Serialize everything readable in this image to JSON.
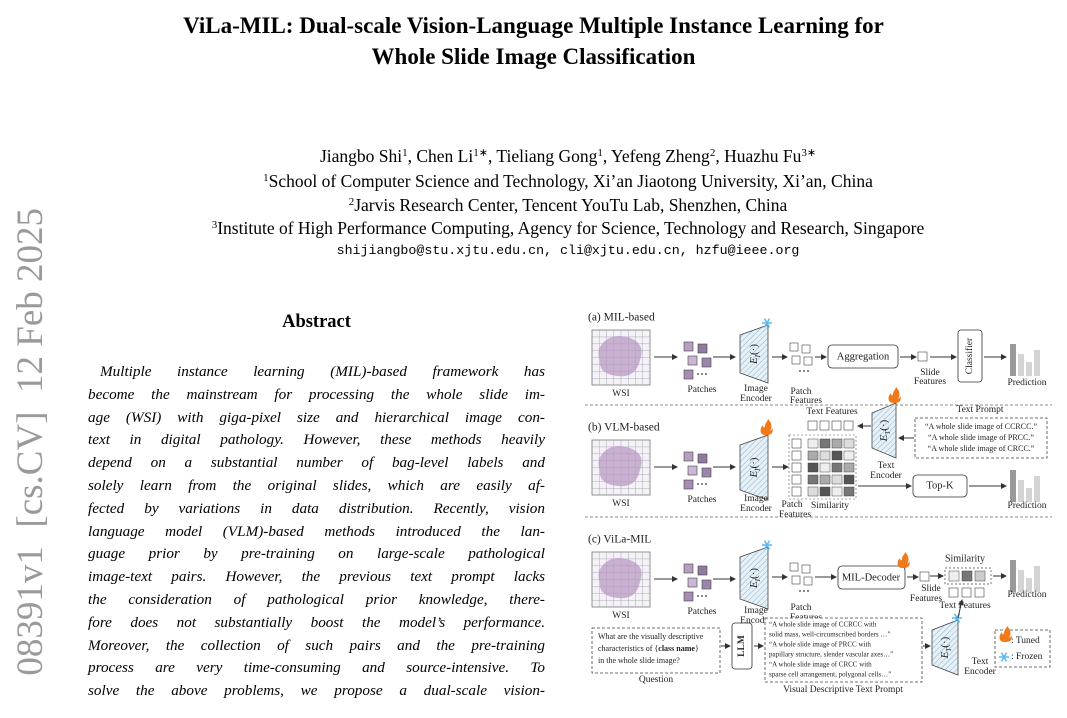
{
  "side_stamp": "08391v1  [cs.CV]  12 Feb 2025",
  "title": [
    "ViLa-MIL: Dual-scale Vision-Language Multiple Instance Learning for",
    "Whole Slide Image Classification"
  ],
  "authors": {
    "separator": ", ",
    "list": [
      {
        "name": "Jiangbo Shi",
        "sup": "1"
      },
      {
        "name": "Chen Li",
        "sup": "1∗"
      },
      {
        "name": "Tieliang Gong",
        "sup": "1"
      },
      {
        "name": "Yefeng Zheng",
        "sup": "2"
      },
      {
        "name": "Huazhu Fu",
        "sup": "3∗"
      }
    ]
  },
  "affiliations": [
    {
      "sup": "1",
      "text": "School of Computer Science and Technology, Xi’an Jiaotong University, Xi’an, China"
    },
    {
      "sup": "2",
      "text": "Jarvis Research Center, Tencent YouTu Lab, Shenzhen, China"
    },
    {
      "sup": "3",
      "text": "Institute of High Performance Computing, Agency for Science, Technology and Research, Singapore"
    }
  ],
  "emails": "shijiangbo@stu.xjtu.edu.cn, cli@xjtu.edu.cn, hzfu@ieee.org",
  "abstract": {
    "heading": "Abstract",
    "lines": [
      "Multiple instance learning (MIL)-based framework has",
      "become the mainstream for processing the whole slide im-",
      "age (WSI) with giga-pixel size and hierarchical image con-",
      "text in digital pathology.  However, these methods heavily",
      "depend on a substantial number of bag-level labels and",
      "solely learn from the original slides, which are easily af-",
      "fected by variations in data distribution.  Recently, vision",
      "language model (VLM)-based methods introduced the lan-",
      "guage prior by pre-training on large-scale pathological",
      "image-text pairs.  However, the previous text prompt lacks",
      "the consideration of pathological prior knowledge, there-",
      "fore does not substantially boost the model’s performance.",
      "Moreover, the collection of such pairs and the pre-training",
      "process are very time-consuming and source-intensive.  To",
      "solve the above problems, we propose a dual-scale vision-"
    ]
  },
  "figure": {
    "mil_based": {
      "label": "(a) MIL-based",
      "wsi": "WSI",
      "patches": "Patches",
      "encoder": {
        "symbol": "E",
        "sub": "I",
        "args": "(·)",
        "name": [
          "Image",
          "Encoder"
        ]
      },
      "patch_features": [
        "Patch",
        "Features"
      ],
      "aggregation": "Aggregation",
      "slide_features": [
        "Slide",
        "Features"
      ],
      "classifier": "Classifier",
      "prediction": "Prediction"
    },
    "vlm_based": {
      "label": "(b) VLM-based",
      "wsi": "WSI",
      "patches": "Patches",
      "encoder": {
        "symbol": "E",
        "sub": "I",
        "args": "(·)",
        "name": [
          "Image",
          "Encoder"
        ]
      },
      "patch_features": [
        "Patch",
        "Features"
      ],
      "similarity": "Similarity",
      "text_features": "Text Features",
      "text_encoder": {
        "symbol": "E",
        "sub": "T",
        "args": "(·)",
        "name": [
          "Text",
          "Encoder"
        ]
      },
      "text_prompt_title": "Text Prompt",
      "text_prompts": [
        "“A whole slide image of CCRCC.”",
        "“A whole slide image of PRCC.”",
        "“A whole slide image of CRCC.”"
      ],
      "top_k": "Top-K",
      "prediction": "Prediction"
    },
    "vila_mil": {
      "label": "(c) ViLa-MIL",
      "wsi": "WSI",
      "patches": "Patches",
      "encoder": {
        "symbol": "E",
        "sub": "I",
        "args": "(·)",
        "name": [
          "Image",
          "Encoder"
        ]
      },
      "patch_features": [
        "Patch",
        "Features"
      ],
      "mil_decoder": "MIL-Decoder",
      "slide_features": [
        "Slide",
        "Features"
      ],
      "similarity": "Similarity",
      "text_features": "Text Features",
      "prediction": "Prediction",
      "question": {
        "lines": [
          "What are the visually descriptive",
          {
            "before": "characteristics of {",
            "bold": "class name",
            "after": "}"
          },
          "in the whole slide image?"
        ],
        "title": "Question"
      },
      "llm": "LLM",
      "descriptive_prompt": {
        "lines": [
          "“A whole slide image of CCRCC with",
          "solid mass, well-circumscribed borders …”",
          "“A whole slide image of PRCC with",
          "papillary structure, slender vascular axes…”",
          "“A whole slide image of CRCC with",
          "sparse cell arrangement, polygonal cells…”"
        ],
        "title": "Visual Descriptive Text Prompt"
      },
      "text_encoder": {
        "symbol": "E",
        "sub": "T",
        "args": "(·)",
        "name": [
          "Text",
          "Encoder"
        ]
      }
    },
    "legend": {
      "tuned": ": Tuned",
      "frozen": ": Frozen"
    }
  }
}
